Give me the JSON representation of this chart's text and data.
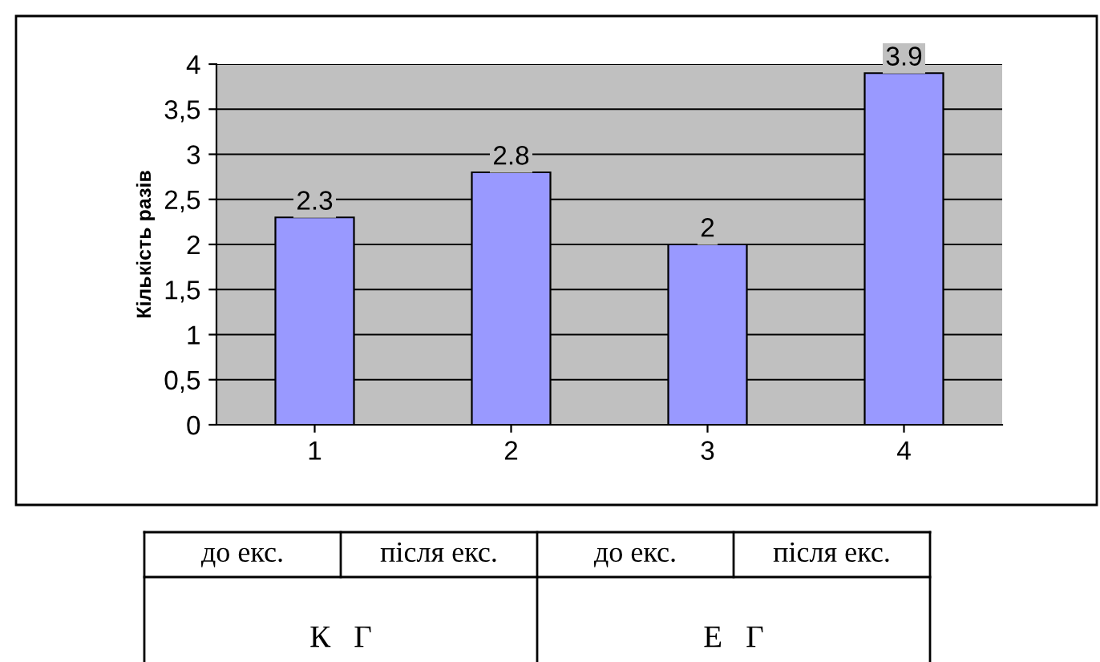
{
  "chart_data": {
    "type": "bar",
    "ylabel": "Кількість разів",
    "categories": [
      "1",
      "2",
      "3",
      "4"
    ],
    "values": [
      2.3,
      2.8,
      2,
      3.9
    ],
    "color": "#9999ff",
    "data_labels": true,
    "grid": "y",
    "legend": false,
    "ylim": [
      0,
      4
    ],
    "yticks": [
      0,
      {
        "value": 0.5,
        "label": "0,5"
      },
      1,
      {
        "value": 1.5,
        "label": "1,5"
      },
      2,
      {
        "value": 2.5,
        "label": "2,5"
      },
      3,
      {
        "value": 3.5,
        "label": "3,5"
      },
      4
    ],
    "annotations": [
      "до екс.",
      "після екс.",
      "до екс.",
      "після екс.",
      "К   Г",
      "Е   Г"
    ]
  }
}
